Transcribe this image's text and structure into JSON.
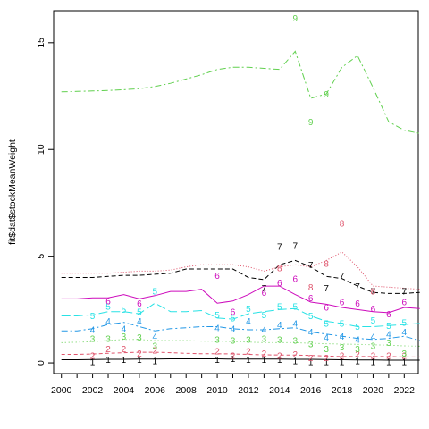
{
  "chart_data": {
    "type": "line",
    "title": "",
    "xlabel": "",
    "ylabel": "fit$dat$stockMeanWeight",
    "xlim": [
      1999.5,
      2022.9
    ],
    "ylim": [
      -0.5,
      16.5
    ],
    "grid": false,
    "legend": "none",
    "x_ticks": [
      "2000",
      "2002",
      "2004",
      "2006",
      "2008",
      "2010",
      "2012",
      "2014",
      "2016",
      "2018",
      "2020",
      "2022"
    ],
    "y_ticks": [
      "0",
      "5",
      "10",
      "15"
    ],
    "fit_years": [
      2000,
      2001,
      2002,
      2003,
      2004,
      2005,
      2006,
      2007,
      2008,
      2009,
      2010,
      2011,
      2012,
      2013,
      2014,
      2015,
      2016,
      2017,
      2018,
      2019,
      2020,
      2021,
      2022,
      2023
    ],
    "series": [
      {
        "label": "1",
        "color": "#000000",
        "dash": "",
        "fit": [
          0.15,
          0.15,
          0.16,
          0.17,
          0.17,
          0.18,
          0.18,
          0.19,
          0.19,
          0.19,
          0.19,
          0.18,
          0.18,
          0.18,
          0.18,
          0.17,
          0.17,
          0.16,
          0.15,
          0.14,
          0.14,
          0.13,
          0.13,
          0.13
        ],
        "obs_x": [
          2002,
          2003,
          2004,
          2005,
          2006,
          2010,
          2011,
          2012,
          2013,
          2014,
          2015,
          2016,
          2017,
          2018,
          2019,
          2020,
          2021,
          2022
        ],
        "obs_y": [
          0.0,
          0.1,
          0.1,
          0.1,
          0.05,
          0.1,
          0.15,
          0.1,
          0.1,
          0.1,
          0.05,
          0.0,
          0.0,
          0.0,
          0.05,
          0.0,
          0.0,
          0.0
        ]
      },
      {
        "label": "2",
        "color": "#df536b",
        "dash": "4,3",
        "fit": [
          0.4,
          0.4,
          0.42,
          0.45,
          0.48,
          0.5,
          0.5,
          0.48,
          0.45,
          0.43,
          0.43,
          0.42,
          0.4,
          0.38,
          0.37,
          0.37,
          0.35,
          0.32,
          0.3,
          0.3,
          0.3,
          0.3,
          0.28,
          0.28
        ],
        "obs_x": [
          2002,
          2003,
          2004,
          2005,
          2006,
          2010,
          2011,
          2012,
          2013,
          2014,
          2015,
          2016,
          2017,
          2018,
          2019,
          2020,
          2021,
          2022
        ],
        "obs_y": [
          0.3,
          0.6,
          0.6,
          0.4,
          0.55,
          0.5,
          0.3,
          0.5,
          0.4,
          0.3,
          0.35,
          0.2,
          0.2,
          0.3,
          0.35,
          0.3,
          0.3,
          0.3
        ]
      },
      {
        "label": "3",
        "color": "#61d04f",
        "dash": "1,3",
        "fit": [
          0.95,
          0.97,
          1.0,
          1.05,
          1.1,
          1.1,
          1.05,
          1.05,
          1.05,
          1.02,
          1.02,
          1.0,
          0.98,
          0.95,
          0.95,
          0.95,
          0.92,
          0.9,
          0.88,
          0.87,
          0.85,
          0.83,
          0.8,
          0.78
        ],
        "obs_x": [
          2002,
          2003,
          2004,
          2005,
          2006,
          2010,
          2011,
          2012,
          2013,
          2014,
          2015,
          2016,
          2017,
          2018,
          2019,
          2020,
          2021,
          2022
        ],
        "obs_y": [
          1.1,
          1.1,
          1.2,
          1.15,
          0.75,
          1.05,
          1.0,
          1.05,
          1.1,
          1.05,
          1.0,
          0.85,
          0.6,
          0.7,
          0.6,
          0.75,
          0.9,
          0.4
        ]
      },
      {
        "label": "4",
        "color": "#2297e6",
        "dash": "7,3,2,3",
        "fit": [
          1.5,
          1.5,
          1.6,
          1.8,
          1.9,
          1.7,
          1.5,
          1.6,
          1.65,
          1.7,
          1.7,
          1.6,
          1.55,
          1.55,
          1.6,
          1.65,
          1.45,
          1.35,
          1.25,
          1.15,
          1.1,
          1.15,
          1.25,
          1.05
        ],
        "obs_x": [
          2002,
          2003,
          2004,
          2005,
          2006,
          2010,
          2011,
          2012,
          2013,
          2014,
          2015,
          2016,
          2017,
          2018,
          2019,
          2020,
          2021,
          2022
        ],
        "obs_y": [
          1.5,
          1.9,
          1.55,
          1.9,
          1.2,
          1.6,
          1.55,
          1.9,
          1.5,
          1.75,
          1.8,
          1.4,
          1.15,
          1.2,
          1.05,
          1.2,
          1.3,
          1.4
        ]
      },
      {
        "label": "5",
        "color": "#28e2e5",
        "dash": "10,4",
        "fit": [
          2.2,
          2.2,
          2.25,
          2.4,
          2.4,
          2.3,
          2.8,
          2.4,
          2.4,
          2.45,
          2.1,
          2.05,
          2.3,
          2.4,
          2.5,
          2.55,
          2.2,
          1.95,
          1.85,
          1.7,
          1.7,
          1.75,
          1.8,
          1.85
        ],
        "obs_x": [
          2002,
          2003,
          2004,
          2005,
          2006,
          2010,
          2011,
          2012,
          2013,
          2014,
          2015,
          2016,
          2017,
          2018,
          2019,
          2020,
          2021,
          2022
        ],
        "obs_y": [
          2.15,
          2.6,
          2.45,
          2.35,
          3.3,
          2.2,
          2.05,
          2.5,
          2.2,
          2.6,
          2.6,
          2.15,
          1.8,
          1.8,
          1.65,
          1.95,
          1.7,
          1.85
        ]
      },
      {
        "label": "6",
        "color": "#cd0bbc",
        "dash": "",
        "fit": [
          3.0,
          3.0,
          3.05,
          3.05,
          3.2,
          3.0,
          3.15,
          3.35,
          3.35,
          3.45,
          2.8,
          2.9,
          3.2,
          3.6,
          3.6,
          3.2,
          2.85,
          2.75,
          2.6,
          2.5,
          2.4,
          2.35,
          2.6,
          2.55
        ],
        "obs_x": [
          2003,
          2005,
          2010,
          2011,
          2013,
          2014,
          2015,
          2016,
          2017,
          2018,
          2019,
          2020,
          2021,
          2022
        ],
        "obs_y": [
          2.85,
          2.75,
          4.05,
          2.35,
          3.25,
          3.7,
          3.9,
          3.0,
          2.55,
          2.8,
          2.75,
          2.5,
          2.25,
          2.8
        ]
      },
      {
        "label": "7",
        "color": "#000000",
        "dash": "5,3",
        "fit": [
          4.0,
          4.0,
          4.0,
          4.05,
          4.1,
          4.1,
          4.15,
          4.2,
          4.4,
          4.4,
          4.4,
          4.4,
          4.0,
          3.9,
          4.6,
          4.8,
          4.5,
          4.05,
          3.95,
          3.6,
          3.3,
          3.25,
          3.25,
          3.3
        ],
        "obs_x": [
          2013,
          2014,
          2015,
          2016,
          2017,
          2018,
          2019,
          2020,
          2022
        ],
        "obs_y": [
          3.45,
          5.4,
          5.45,
          4.55,
          3.45,
          4.05,
          3.55,
          3.3,
          3.3
        ]
      },
      {
        "label": "8",
        "color": "#df536b",
        "dash": "1,2",
        "fit": [
          4.2,
          4.2,
          4.2,
          4.2,
          4.25,
          4.3,
          4.3,
          4.35,
          4.5,
          4.6,
          4.6,
          4.6,
          4.5,
          4.3,
          4.5,
          4.6,
          4.5,
          4.8,
          5.2,
          4.5,
          3.6,
          3.55,
          3.5,
          3.45
        ],
        "obs_x": [
          2014,
          2016,
          2017,
          2018,
          2020
        ],
        "obs_y": [
          4.4,
          3.5,
          4.6,
          6.5,
          3.3
        ]
      },
      {
        "label": "9",
        "color": "#61d04f",
        "dash": "7,3,2,3",
        "fit": [
          12.7,
          12.72,
          12.74,
          12.76,
          12.8,
          12.85,
          12.95,
          13.1,
          13.3,
          13.5,
          13.75,
          13.85,
          13.85,
          13.8,
          13.75,
          14.6,
          12.4,
          12.6,
          13.85,
          14.4,
          12.9,
          11.3,
          10.9,
          10.75
        ],
        "obs_x": [
          2015,
          2016,
          2017
        ],
        "obs_y": [
          16.1,
          11.25,
          12.55
        ]
      }
    ]
  }
}
